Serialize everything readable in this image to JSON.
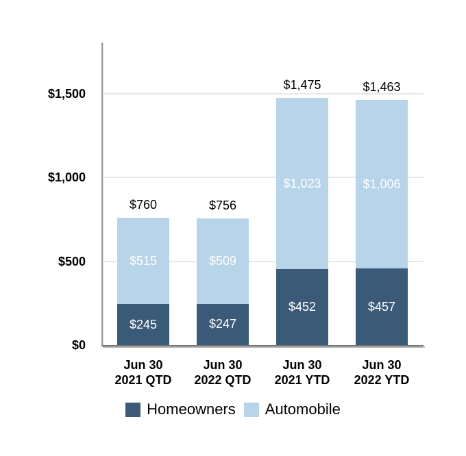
{
  "chart_data": {
    "type": "bar",
    "stacked": true,
    "title": "",
    "grid": true,
    "legend_position": "bottom",
    "categories": [
      {
        "line1": "Jun 30",
        "line2": "2021 QTD"
      },
      {
        "line1": "Jun 30",
        "line2": "2022 QTD"
      },
      {
        "line1": "Jun 30",
        "line2": "2021 YTD"
      },
      {
        "line1": "Jun 30",
        "line2": "2022 YTD"
      }
    ],
    "series": [
      {
        "name": "Homeowners",
        "color": "#3a5a77",
        "values": [
          245,
          247,
          452,
          457
        ],
        "labels": [
          "$245",
          "$247",
          "$452",
          "$457"
        ],
        "label_color": "#ffffff"
      },
      {
        "name": "Automobile",
        "color": "#b8d4e8",
        "values": [
          515,
          509,
          1023,
          1006
        ],
        "labels": [
          "$515",
          "$509",
          "$1,023",
          "$1,006"
        ],
        "label_color": "#ffffff"
      }
    ],
    "totals": {
      "values": [
        760,
        756,
        1475,
        1463
      ],
      "labels": [
        "$760",
        "$756",
        "$1,475",
        "$1,463"
      ]
    },
    "y_axis": {
      "min": 0,
      "max": 1500,
      "ticks": [
        {
          "value": 0,
          "label": "$0"
        },
        {
          "value": 500,
          "label": "$500"
        },
        {
          "value": 1000,
          "label": "$1,000"
        },
        {
          "value": 1500,
          "label": "$1,500"
        }
      ]
    },
    "style_colors": {
      "gridline": "#e8e8e8",
      "axis_line": "#757575",
      "tick_text": "#000000"
    }
  }
}
